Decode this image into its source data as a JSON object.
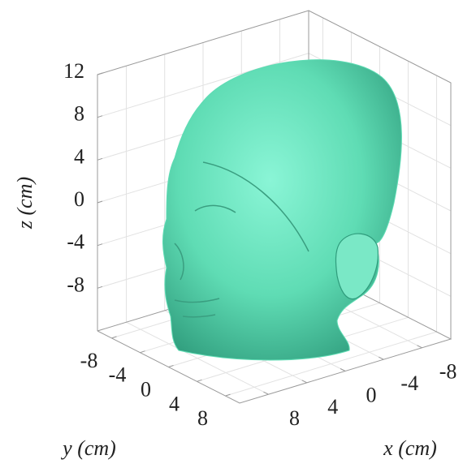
{
  "chart_data": {
    "type": "surface3d",
    "x_label": "x (cm)",
    "y_label": "y (cm)",
    "z_label": "z (cm)",
    "xlim": [
      -11,
      11
    ],
    "ylim": [
      -10,
      10
    ],
    "zlim": [
      -12,
      12
    ],
    "xticks": [
      -8,
      -4,
      0,
      4,
      8
    ],
    "yticks": [
      -8,
      -4,
      0,
      4,
      8
    ],
    "zticks": [
      -8,
      -4,
      0,
      4,
      8,
      12
    ],
    "grid": true,
    "color": "#5fdcb4"
  }
}
